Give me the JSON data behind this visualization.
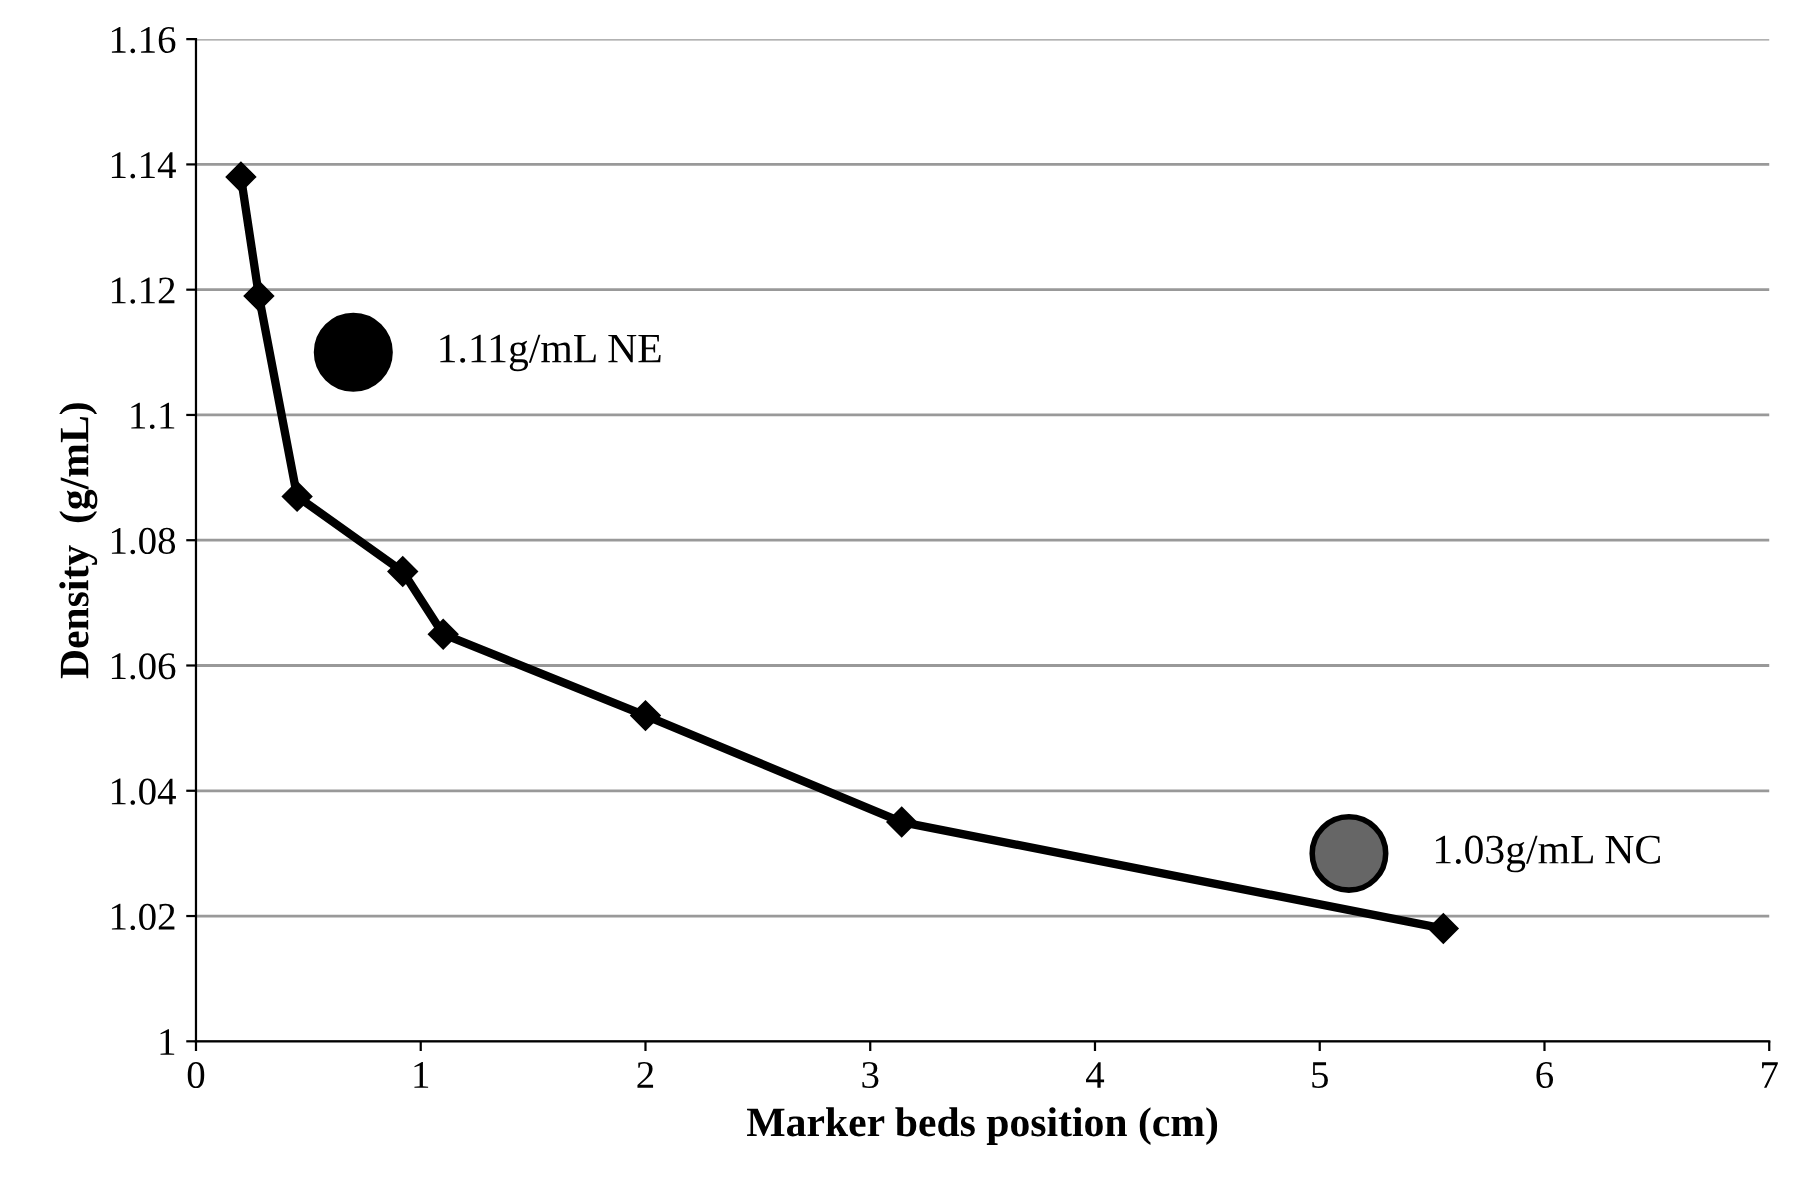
{
  "chart_data": {
    "type": "line",
    "xlabel": "Marker beds position (cm)",
    "ylabel": "Density  (g/mL)",
    "xlim": [
      0,
      7
    ],
    "xticks": [
      0,
      1,
      2,
      3,
      4,
      5,
      6,
      7
    ],
    "ylim": [
      1,
      1.16
    ],
    "yticks": [
      {
        "value": 1,
        "label": "1"
      },
      {
        "value": 1.02,
        "label": "1.02"
      },
      {
        "value": 1.04,
        "label": "1.04"
      },
      {
        "value": 1.06,
        "label": "1.06"
      },
      {
        "value": 1.08,
        "label": "1.08"
      },
      {
        "value": 1.1,
        "label": "1.1"
      },
      {
        "value": 1.12,
        "label": "1.12"
      },
      {
        "value": 1.14,
        "label": "1.14"
      },
      {
        "value": 1.16,
        "label": "1.16"
      }
    ],
    "grid": "y",
    "line_style": "solid",
    "series": [
      {
        "marker": "diamond",
        "color": "#000000",
        "x": [
          0.2,
          0.28,
          0.45,
          0.92,
          1.1,
          2.0,
          3.14,
          5.55
        ],
        "values": [
          1.138,
          1.119,
          1.087,
          1.075,
          1.065,
          1.052,
          1.035,
          1.018
        ]
      },
      {
        "type": "scatter",
        "marker": "circle",
        "color": "#000000",
        "x": [
          0.7
        ],
        "values": [
          1.11
        ]
      },
      {
        "type": "scatter",
        "marker": "circle",
        "color": "#666666",
        "x": [
          5.13
        ],
        "values": [
          1.03
        ]
      }
    ],
    "annotations": [
      {
        "text": "1.11g/mL NE",
        "x": 0.7,
        "y": 1.11
      },
      {
        "text": "1.03g/mL NC",
        "x": 5.13,
        "y": 1.03
      }
    ]
  }
}
